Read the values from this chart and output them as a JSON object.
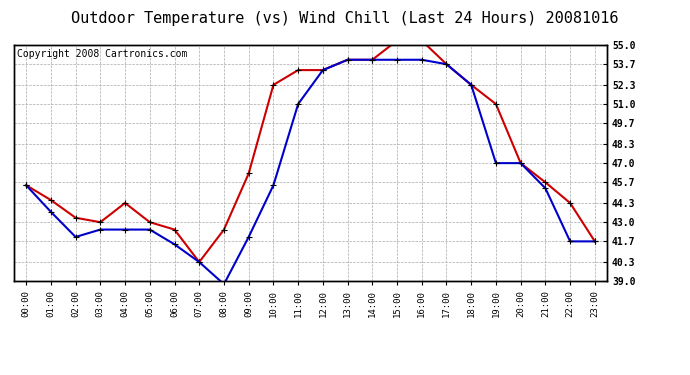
{
  "title": "Outdoor Temperature (vs) Wind Chill (Last 24 Hours) 20081016",
  "copyright": "Copyright 2008 Cartronics.com",
  "hours": [
    "00:00",
    "01:00",
    "02:00",
    "03:00",
    "04:00",
    "05:00",
    "06:00",
    "07:00",
    "08:00",
    "09:00",
    "10:00",
    "11:00",
    "12:00",
    "13:00",
    "14:00",
    "15:00",
    "16:00",
    "17:00",
    "18:00",
    "19:00",
    "20:00",
    "21:00",
    "22:00",
    "23:00"
  ],
  "outdoor_temp": [
    45.5,
    44.5,
    43.3,
    43.0,
    44.3,
    43.0,
    42.5,
    40.3,
    42.5,
    46.3,
    52.3,
    53.3,
    53.3,
    54.0,
    54.0,
    55.3,
    55.3,
    53.7,
    52.3,
    51.0,
    47.0,
    45.7,
    44.3,
    41.7
  ],
  "wind_chill": [
    45.5,
    43.7,
    42.0,
    42.5,
    42.5,
    42.5,
    41.5,
    40.3,
    38.8,
    42.0,
    45.5,
    51.0,
    53.3,
    54.0,
    54.0,
    54.0,
    54.0,
    53.7,
    52.3,
    47.0,
    47.0,
    45.3,
    41.7,
    41.7
  ],
  "temp_color": "#cc0000",
  "wind_chill_color": "#0000cc",
  "background_color": "#ffffff",
  "grid_color": "#aaaaaa",
  "ylim_min": 39.0,
  "ylim_max": 55.0,
  "yticks": [
    39.0,
    40.3,
    41.7,
    43.0,
    44.3,
    45.7,
    47.0,
    48.3,
    49.7,
    51.0,
    52.3,
    53.7,
    55.0
  ],
  "ytick_labels": [
    "39.0",
    "40.3",
    "41.7",
    "43.0",
    "44.3",
    "45.7",
    "47.0",
    "48.3",
    "49.7",
    "51.0",
    "52.3",
    "53.7",
    "55.0"
  ],
  "title_fontsize": 11,
  "copyright_fontsize": 7,
  "marker_size": 5,
  "line_width": 1.5
}
